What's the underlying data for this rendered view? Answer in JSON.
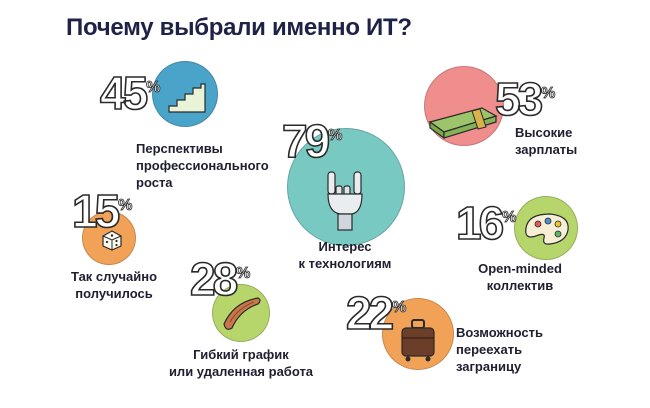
{
  "title": "Почему выбрали именно ИТ?",
  "colors": {
    "blue": "#4aa3c9",
    "pink": "#f08d8d",
    "teal": "#79c9c3",
    "orange": "#f2a257",
    "green": "#b6d56b",
    "yellow": "#f1dc63"
  },
  "chart_data": {
    "type": "bubble",
    "title": "Почему выбрали именно ИТ?",
    "unit": "%",
    "items": [
      {
        "id": "perspectives",
        "value": 45,
        "label": "Перспективы\nпрофессионального\nроста",
        "color": "#4aa3c9",
        "icon": "stairs-icon"
      },
      {
        "id": "salary",
        "value": 53,
        "label": "Высокие\nзарплаты",
        "color": "#f08d8d",
        "icon": "money-stack-icon"
      },
      {
        "id": "tech",
        "value": 79,
        "label": "Интерес\nк технологиям",
        "color": "#79c9c3",
        "icon": "robot-hand-icon"
      },
      {
        "id": "chance",
        "value": 15,
        "label": "Так случайно\nполучилось",
        "color": "#f2a257",
        "icon": "dice-icon"
      },
      {
        "id": "team",
        "value": 16,
        "label": "Open-minded\nколлектив",
        "color": "#b6d56b",
        "icon": "palette-icon"
      },
      {
        "id": "schedule",
        "value": 28,
        "label": "Гибкий график\nили удаленная работа",
        "color": "#b6d56b",
        "icon": "boomerang-icon"
      },
      {
        "id": "relocation",
        "value": 22,
        "label": "Возможность\nпереехать\nзаграницу",
        "color": "#f2a257",
        "icon": "suitcase-icon"
      }
    ]
  }
}
